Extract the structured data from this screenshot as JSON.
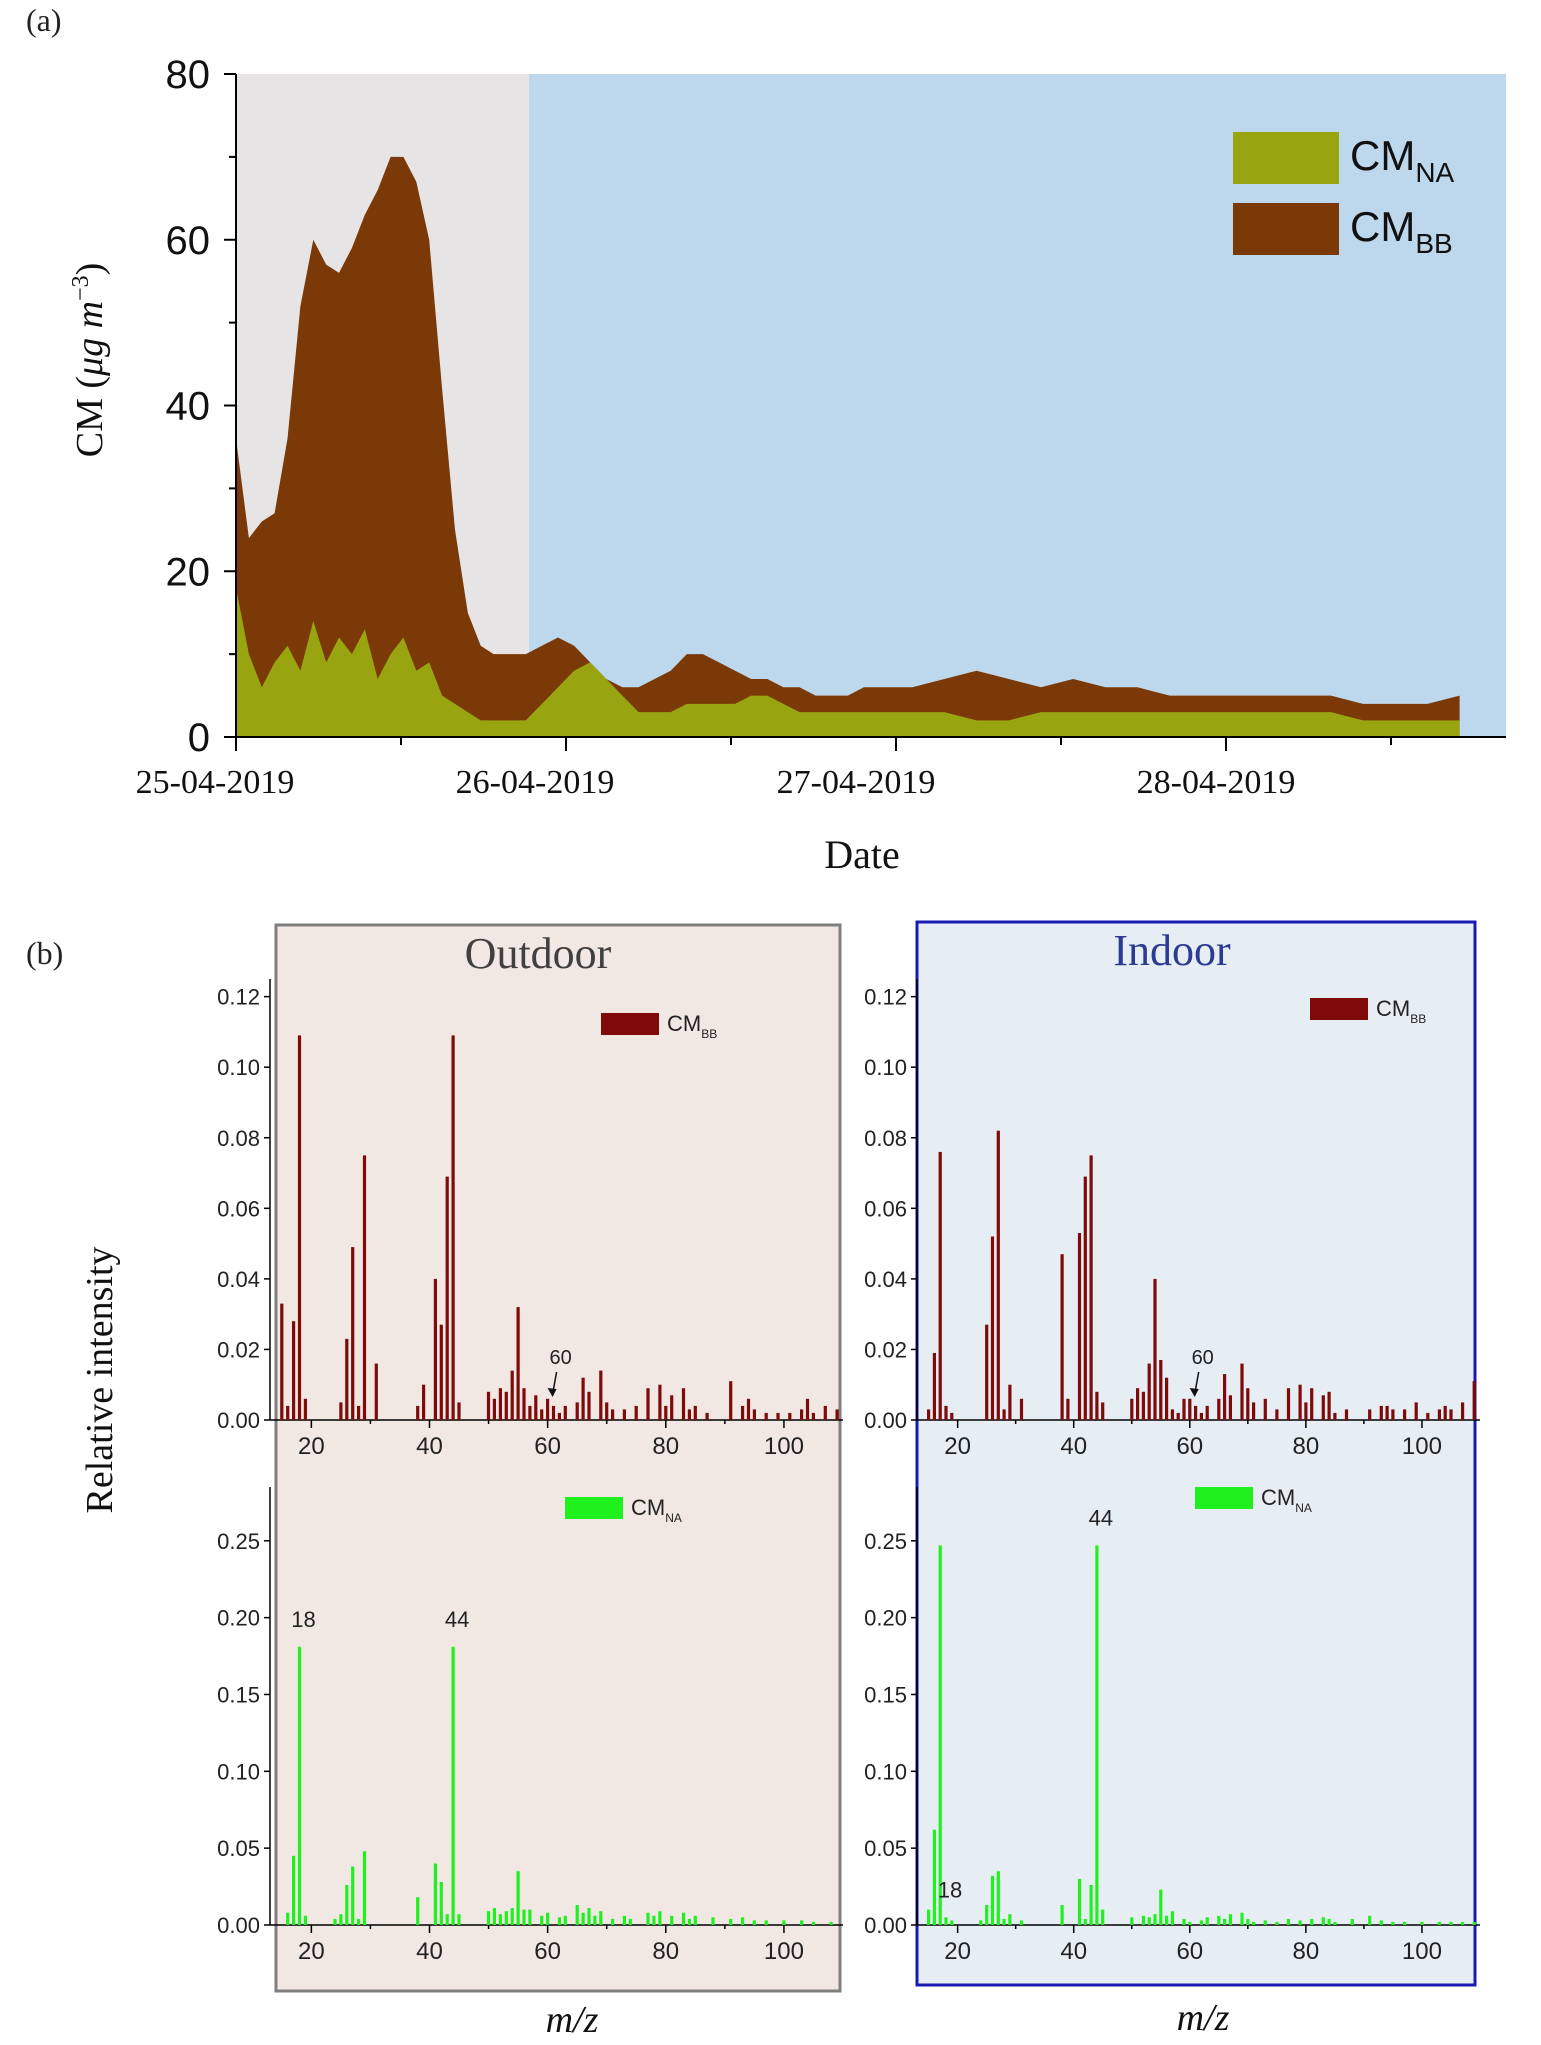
{
  "panel_labels": {
    "a": "(a)",
    "b": "(b)"
  },
  "colors": {
    "background_outdoor_period": "#e6e4e4",
    "background_indoor_period": "#bdd7ec",
    "cm_na": "#99a411",
    "cm_bb": "#7a3907",
    "outdoor_panel_bg": "#f1e8e4",
    "outdoor_panel_border": "#7f7f7f",
    "outdoor_title": "#404040",
    "indoor_panel_bg": "#e6eef4",
    "indoor_panel_border": "#1919b3",
    "indoor_title": "#2b3b93",
    "spectrum_bb": "#7e0a0a",
    "spectrum_na": "#1ff11f"
  },
  "chart_data": [
    {
      "id": "a",
      "type": "area",
      "stacked": true,
      "xlabel": "Date",
      "ylabel": "CM (μg m⁻³)",
      "ylabel_parts": {
        "main": "CM (",
        "unit": "μg m",
        "sup": "−3",
        "close": ")"
      },
      "ylim": [
        0,
        80
      ],
      "yticks": [
        "0",
        "20",
        "40",
        "60",
        "80"
      ],
      "x_tick_labels": [
        "25-04-2019",
        "26-04-2019",
        "27-04-2019",
        "28-04-2019"
      ],
      "legend": [
        {
          "main": "CM",
          "sub": "NA"
        },
        {
          "main": "CM",
          "sub": "BB"
        }
      ],
      "legend_position": "top-right",
      "shaded_periods": [
        "outdoor (25-04-2019 to ~26-04-2019 00:00)",
        "indoor (remainder)"
      ],
      "x_unit": "day since 25-04-2019 00:00",
      "x": [
        0,
        0.04,
        0.08,
        0.12,
        0.16,
        0.2,
        0.24,
        0.28,
        0.32,
        0.36,
        0.4,
        0.44,
        0.48,
        0.52,
        0.56,
        0.6,
        0.64,
        0.68,
        0.72,
        0.76,
        0.8,
        0.84,
        0.87,
        0.9,
        0.95,
        1.0,
        1.05,
        1.1,
        1.15,
        1.2,
        1.25,
        1.3,
        1.35,
        1.4,
        1.45,
        1.5,
        1.55,
        1.6,
        1.65,
        1.7,
        1.75,
        1.8,
        1.85,
        1.9,
        1.95,
        2.0,
        2.1,
        2.2,
        2.3,
        2.4,
        2.5,
        2.6,
        2.7,
        2.8,
        2.9,
        3.0,
        3.1,
        3.2,
        3.3,
        3.4,
        3.5,
        3.6,
        3.7,
        3.8
      ],
      "series": [
        {
          "name": "CM_NA",
          "values": [
            18,
            10,
            6,
            9,
            11,
            8,
            14,
            9,
            12,
            10,
            13,
            7,
            10,
            12,
            8,
            9,
            5,
            4,
            3,
            2,
            2,
            2,
            2,
            2,
            4,
            6,
            8,
            9,
            7,
            5,
            3,
            3,
            3,
            4,
            4,
            4,
            4,
            5,
            5,
            4,
            3,
            3,
            3,
            3,
            3,
            3,
            3,
            3,
            2,
            2,
            3,
            3,
            3,
            3,
            3,
            3,
            3,
            3,
            3,
            3,
            2,
            2,
            2,
            2
          ]
        },
        {
          "name": "CM_BB_total",
          "values": [
            36,
            24,
            26,
            27,
            36,
            52,
            60,
            57,
            56,
            59,
            63,
            66,
            70,
            70,
            67,
            60,
            42,
            25,
            15,
            11,
            10,
            10,
            10,
            10,
            11,
            12,
            11,
            9,
            7,
            6,
            6,
            7,
            8,
            10,
            10,
            9,
            8,
            7,
            7,
            6,
            6,
            5,
            5,
            5,
            6,
            6,
            6,
            7,
            8,
            7,
            6,
            7,
            6,
            6,
            5,
            5,
            5,
            5,
            5,
            5,
            4,
            4,
            4,
            5
          ]
        }
      ]
    },
    {
      "id": "b_outdoor_bb",
      "type": "bar",
      "panel_title": "Outdoor",
      "legend": {
        "main": "CM",
        "sub": "BB"
      },
      "ylim": [
        0,
        0.125
      ],
      "yticks": [
        "0.00",
        "0.02",
        "0.04",
        "0.06",
        "0.08",
        "0.10",
        "0.12"
      ],
      "xlim": [
        13,
        110
      ],
      "xticks": [
        "20",
        "40",
        "60",
        "80",
        "100"
      ],
      "annotation": "60",
      "x": [
        15,
        16,
        17,
        18,
        19,
        25,
        26,
        27,
        28,
        29,
        31,
        38,
        39,
        41,
        42,
        43,
        44,
        45,
        50,
        51,
        52,
        53,
        54,
        55,
        56,
        57,
        58,
        59,
        60,
        61,
        62,
        63,
        65,
        66,
        67,
        69,
        70,
        71,
        73,
        75,
        77,
        79,
        80,
        81,
        83,
        84,
        85,
        87,
        91,
        93,
        94,
        95,
        97,
        99,
        101,
        103,
        104,
        105,
        107,
        109
      ],
      "values": [
        0.033,
        0.004,
        0.028,
        0.109,
        0.006,
        0.005,
        0.023,
        0.049,
        0.004,
        0.075,
        0.016,
        0.004,
        0.01,
        0.04,
        0.027,
        0.069,
        0.109,
        0.005,
        0.008,
        0.006,
        0.009,
        0.008,
        0.014,
        0.032,
        0.009,
        0.004,
        0.007,
        0.003,
        0.006,
        0.004,
        0.002,
        0.004,
        0.005,
        0.012,
        0.008,
        0.014,
        0.005,
        0.003,
        0.003,
        0.004,
        0.009,
        0.01,
        0.004,
        0.007,
        0.009,
        0.003,
        0.004,
        0.002,
        0.011,
        0.004,
        0.006,
        0.003,
        0.002,
        0.002,
        0.002,
        0.003,
        0.006,
        0.002,
        0.004,
        0.003
      ]
    },
    {
      "id": "b_outdoor_na",
      "type": "bar",
      "panel_title": "Outdoor",
      "legend": {
        "main": "CM",
        "sub": "NA"
      },
      "ylim": [
        0,
        0.285
      ],
      "yticks": [
        "0.00",
        "0.05",
        "0.10",
        "0.15",
        "0.20",
        "0.25"
      ],
      "xlim": [
        13,
        110
      ],
      "xticks": [
        "20",
        "40",
        "60",
        "80",
        "100"
      ],
      "peak_labels": [
        {
          "x": 18,
          "text": "18"
        },
        {
          "x": 44,
          "text": "44"
        }
      ],
      "x": [
        16,
        17,
        18,
        19,
        24,
        25,
        26,
        27,
        28,
        29,
        38,
        41,
        42,
        43,
        44,
        45,
        50,
        51,
        52,
        53,
        54,
        55,
        56,
        57,
        59,
        60,
        62,
        63,
        65,
        66,
        67,
        68,
        69,
        71,
        73,
        74,
        77,
        78,
        79,
        81,
        83,
        84,
        85,
        88,
        91,
        93,
        95,
        97,
        100,
        103,
        105,
        108
      ],
      "values": [
        0.008,
        0.045,
        0.181,
        0.006,
        0.004,
        0.007,
        0.026,
        0.038,
        0.004,
        0.048,
        0.018,
        0.04,
        0.028,
        0.007,
        0.181,
        0.007,
        0.009,
        0.011,
        0.007,
        0.009,
        0.011,
        0.035,
        0.01,
        0.01,
        0.006,
        0.008,
        0.005,
        0.006,
        0.013,
        0.008,
        0.011,
        0.006,
        0.009,
        0.004,
        0.006,
        0.004,
        0.008,
        0.006,
        0.009,
        0.006,
        0.008,
        0.004,
        0.006,
        0.005,
        0.004,
        0.005,
        0.003,
        0.003,
        0.003,
        0.003,
        0.002,
        0.002
      ]
    },
    {
      "id": "b_indoor_bb",
      "type": "bar",
      "panel_title": "Indoor",
      "legend": {
        "main": "CM",
        "sub": "BB"
      },
      "ylim": [
        0,
        0.125
      ],
      "yticks": [
        "0.00",
        "0.02",
        "0.04",
        "0.06",
        "0.08",
        "0.10",
        "0.12"
      ],
      "xlim": [
        13,
        110
      ],
      "xticks": [
        "20",
        "40",
        "60",
        "80",
        "100"
      ],
      "annotation": "60",
      "x": [
        15,
        16,
        17,
        18,
        19,
        25,
        26,
        27,
        28,
        29,
        31,
        38,
        39,
        41,
        42,
        43,
        44,
        45,
        50,
        51,
        52,
        53,
        54,
        55,
        56,
        57,
        58,
        59,
        60,
        61,
        62,
        63,
        65,
        66,
        67,
        69,
        70,
        71,
        73,
        75,
        77,
        79,
        80,
        81,
        83,
        84,
        85,
        87,
        91,
        93,
        94,
        95,
        97,
        99,
        101,
        103,
        104,
        105,
        107,
        109
      ],
      "values": [
        0.003,
        0.019,
        0.076,
        0.004,
        0.002,
        0.027,
        0.052,
        0.082,
        0.003,
        0.01,
        0.006,
        0.047,
        0.006,
        0.053,
        0.069,
        0.075,
        0.008,
        0.005,
        0.006,
        0.009,
        0.008,
        0.016,
        0.04,
        0.017,
        0.012,
        0.003,
        0.002,
        0.006,
        0.006,
        0.004,
        0.002,
        0.004,
        0.006,
        0.013,
        0.007,
        0.016,
        0.009,
        0.005,
        0.006,
        0.003,
        0.009,
        0.01,
        0.005,
        0.009,
        0.007,
        0.008,
        0.002,
        0.003,
        0.003,
        0.004,
        0.004,
        0.003,
        0.003,
        0.005,
        0.002,
        0.003,
        0.004,
        0.003,
        0.005,
        0.011
      ]
    },
    {
      "id": "b_indoor_na",
      "type": "bar",
      "panel_title": "Indoor",
      "legend": {
        "main": "CM",
        "sub": "NA"
      },
      "ylim": [
        0,
        0.285
      ],
      "yticks": [
        "0.00",
        "0.05",
        "0.10",
        "0.15",
        "0.20",
        "0.25"
      ],
      "xlim": [
        13,
        110
      ],
      "xticks": [
        "20",
        "40",
        "60",
        "80",
        "100"
      ],
      "peak_labels": [
        {
          "x": 18,
          "text": "18"
        },
        {
          "x": 44,
          "text": "44"
        }
      ],
      "x": [
        15,
        16,
        17,
        18,
        19,
        24,
        25,
        26,
        27,
        28,
        29,
        31,
        38,
        41,
        42,
        43,
        44,
        45,
        50,
        52,
        53,
        54,
        55,
        56,
        57,
        59,
        60,
        62,
        63,
        65,
        66,
        67,
        69,
        70,
        71,
        73,
        75,
        77,
        79,
        81,
        83,
        84,
        85,
        88,
        91,
        93,
        95,
        97,
        100,
        103,
        105,
        107,
        109
      ],
      "values": [
        0.01,
        0.062,
        0.247,
        0.005,
        0.003,
        0.003,
        0.013,
        0.032,
        0.035,
        0.004,
        0.007,
        0.003,
        0.013,
        0.03,
        0.004,
        0.026,
        0.247,
        0.01,
        0.005,
        0.006,
        0.005,
        0.007,
        0.023,
        0.006,
        0.009,
        0.004,
        0.002,
        0.003,
        0.005,
        0.006,
        0.004,
        0.007,
        0.008,
        0.004,
        0.002,
        0.003,
        0.002,
        0.004,
        0.003,
        0.004,
        0.005,
        0.004,
        0.002,
        0.004,
        0.006,
        0.003,
        0.002,
        0.002,
        0.002,
        0.002,
        0.002,
        0.002,
        0.002
      ]
    }
  ],
  "panel_b": {
    "outdoor_title": "Outdoor",
    "indoor_title": "Indoor",
    "ylabel": "Relative intensity",
    "xlabel": "m/z"
  }
}
